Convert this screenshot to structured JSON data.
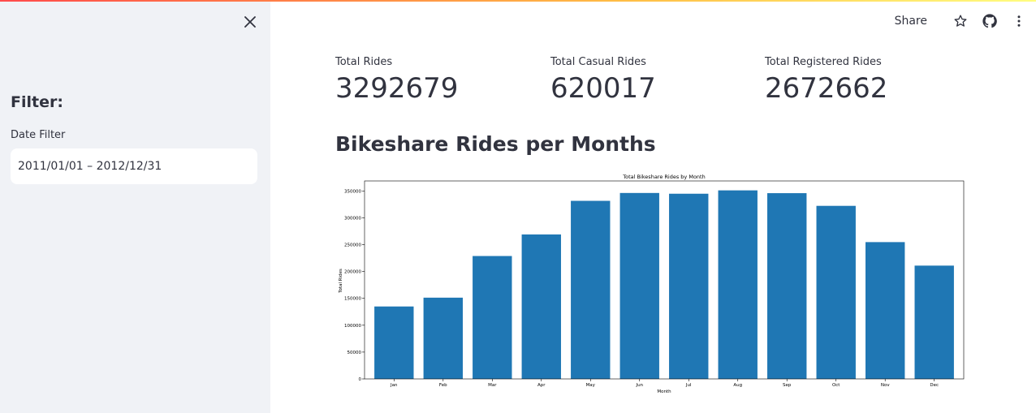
{
  "sidebar": {
    "heading": "Filter:",
    "date_filter_label": "Date Filter",
    "date_filter_value": "2011/01/01 – 2012/12/31"
  },
  "toolbar": {
    "share_label": "Share",
    "icons": [
      "star-icon",
      "github-icon",
      "more-vert-icon"
    ]
  },
  "metrics": [
    {
      "label": "Total Rides",
      "value": "3292679"
    },
    {
      "label": "Total Casual Rides",
      "value": "620017"
    },
    {
      "label": "Total Registered Rides",
      "value": "2672662"
    }
  ],
  "section_title": "Bikeshare Rides per Months",
  "colors": {
    "bar": "#1f77b4",
    "sidebar_bg": "#f0f2f6",
    "text": "#31333f"
  },
  "chart_data": {
    "type": "bar",
    "title": "Total Bikeshare Rides by Month",
    "xlabel": "Month",
    "ylabel": "Total Rides",
    "categories": [
      "Jan",
      "Feb",
      "Mar",
      "Apr",
      "May",
      "Jun",
      "Jul",
      "Aug",
      "Sep",
      "Oct",
      "Nov",
      "Dec"
    ],
    "values": [
      134933,
      151352,
      228920,
      269094,
      331686,
      346342,
      344948,
      351194,
      345991,
      322352,
      254831,
      211036
    ],
    "yticks": [
      0,
      50000,
      100000,
      150000,
      200000,
      250000,
      300000,
      350000
    ],
    "ylim": [
      0,
      368753
    ],
    "grid": false
  }
}
